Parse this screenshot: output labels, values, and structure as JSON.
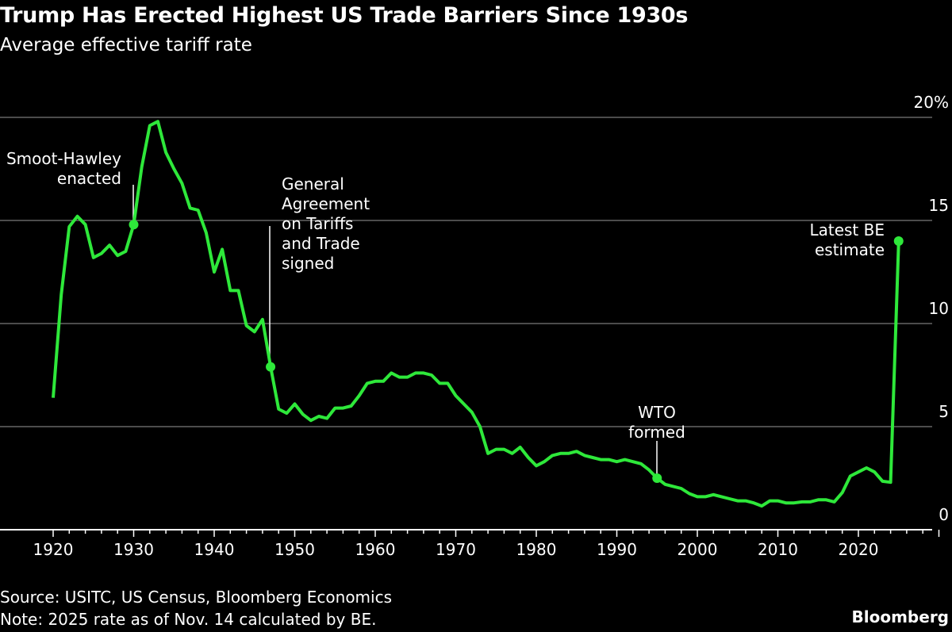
{
  "title": "Trump Has Erected Highest US Trade Barriers Since 1930s",
  "subtitle": "Average effective tariff rate",
  "footer": {
    "source": "Source: USITC, US Census, Bloomberg Economics",
    "note": "Note: 2025 rate as of Nov. 14 calculated by BE.",
    "logo": "Bloomberg"
  },
  "colors": {
    "background": "#000000",
    "line": "#2ee83a",
    "grid": "#666666",
    "text": "#ffffff"
  },
  "chart_data": {
    "type": "line",
    "title": "Trump Has Erected Highest US Trade Barriers Since 1930s",
    "subtitle": "Average effective tariff rate",
    "xlabel": "",
    "ylabel": "",
    "xlim": [
      1920,
      2030
    ],
    "ylim": [
      0,
      20
    ],
    "grid": true,
    "y_axis_side": "right",
    "x_ticks": [
      "1920",
      "1930",
      "1940",
      "1950",
      "1960",
      "1970",
      "1980",
      "1990",
      "2000",
      "2010",
      "2020"
    ],
    "y_ticks": [
      "0",
      "5",
      "10",
      "15",
      "20%"
    ],
    "y_tick_values": [
      0,
      5,
      10,
      15,
      20
    ],
    "series": [
      {
        "x": [
          1920,
          1921,
          1922,
          1923,
          1924,
          1925,
          1926,
          1927,
          1928,
          1929,
          1930,
          1931,
          1932,
          1933,
          1934,
          1935,
          1936,
          1937,
          1938,
          1939,
          1940,
          1941,
          1942,
          1943,
          1944,
          1945,
          1946,
          1947,
          1948,
          1949,
          1950,
          1951,
          1952,
          1953,
          1954,
          1955,
          1956,
          1957,
          1958,
          1959,
          1960,
          1961,
          1962,
          1963,
          1964,
          1965,
          1966,
          1967,
          1968,
          1969,
          1970,
          1971,
          1972,
          1973,
          1974,
          1975,
          1976,
          1977,
          1978,
          1979,
          1980,
          1981,
          1982,
          1983,
          1984,
          1985,
          1986,
          1987,
          1988,
          1989,
          1990,
          1991,
          1992,
          1993,
          1994,
          1995,
          1996,
          1997,
          1998,
          1999,
          2000,
          2001,
          2002,
          2003,
          2004,
          2005,
          2006,
          2007,
          2008,
          2009,
          2010,
          2011,
          2012,
          2013,
          2014,
          2015,
          2016,
          2017,
          2018,
          2019,
          2020,
          2021,
          2022,
          2023,
          2024,
          2025
        ],
        "values": [
          6.4,
          11.4,
          14.7,
          15.2,
          14.8,
          13.2,
          13.4,
          13.8,
          13.3,
          13.5,
          14.8,
          17.6,
          19.6,
          19.8,
          18.3,
          17.5,
          16.8,
          15.6,
          15.5,
          14.4,
          12.5,
          13.6,
          11.6,
          11.6,
          9.9,
          9.6,
          10.2,
          7.9,
          5.85,
          5.65,
          6.1,
          5.6,
          5.3,
          5.5,
          5.4,
          5.9,
          5.9,
          6.0,
          6.5,
          7.1,
          7.2,
          7.2,
          7.6,
          7.4,
          7.4,
          7.6,
          7.6,
          7.5,
          7.1,
          7.1,
          6.5,
          6.1,
          5.7,
          5.0,
          3.7,
          3.9,
          3.9,
          3.7,
          4.0,
          3.5,
          3.1,
          3.3,
          3.6,
          3.7,
          3.7,
          3.8,
          3.6,
          3.5,
          3.4,
          3.4,
          3.3,
          3.4,
          3.3,
          3.2,
          2.9,
          2.5,
          2.2,
          2.1,
          2.0,
          1.75,
          1.6,
          1.6,
          1.7,
          1.6,
          1.5,
          1.4,
          1.4,
          1.3,
          1.15,
          1.4,
          1.4,
          1.3,
          1.3,
          1.35,
          1.35,
          1.45,
          1.45,
          1.35,
          1.8,
          2.6,
          2.8,
          3.0,
          2.8,
          2.35,
          2.3,
          14.0
        ]
      }
    ],
    "annotations": [
      {
        "year": 1930,
        "value": 14.8,
        "lines": [
          "Smoot-Hawley",
          "enacted"
        ]
      },
      {
        "year": 1947,
        "value": 7.9,
        "lines": [
          "General",
          "Agreement",
          "on Tariffs",
          "and Trade",
          "signed"
        ]
      },
      {
        "year": 1995,
        "value": 2.5,
        "lines": [
          "WTO",
          "formed"
        ]
      },
      {
        "year": 2025,
        "value": 14.0,
        "lines": [
          "Latest BE",
          "estimate"
        ]
      }
    ]
  }
}
